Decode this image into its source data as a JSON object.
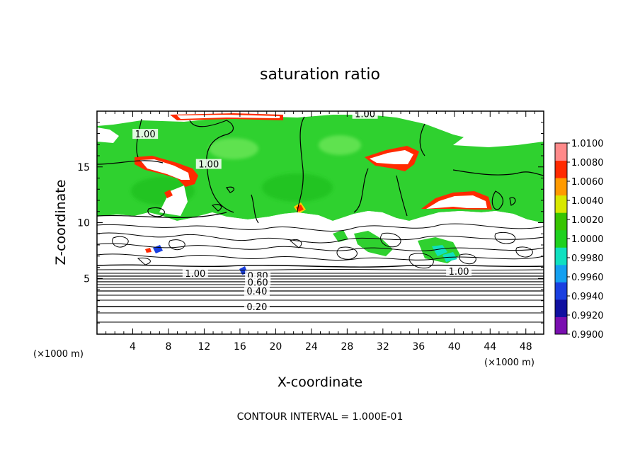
{
  "chart_data": {
    "type": "heatmap",
    "title": "saturation ratio",
    "xlabel": "X-coordinate",
    "ylabel": "Z-coordinate",
    "x_unit": "(×1000 m)",
    "z_unit": "(×1000 m)",
    "xlim": [
      0,
      50
    ],
    "ylim": [
      0,
      20
    ],
    "x_ticks": [
      4,
      8,
      12,
      16,
      20,
      24,
      28,
      32,
      36,
      40,
      44,
      48
    ],
    "y_ticks": [
      5,
      10,
      15
    ],
    "colorbar": {
      "min": 0.99,
      "max": 1.01,
      "labels": [
        "1.0100",
        "1.0080",
        "1.0060",
        "1.0040",
        "1.0020",
        "1.0000",
        "0.9980",
        "0.9960",
        "0.9940",
        "0.9920",
        "0.9900"
      ],
      "colors": [
        "#7a0fb0",
        "#1010a0",
        "#1a3fe0",
        "#14a0f0",
        "#10e0c0",
        "#1fd11f",
        "#38c400",
        "#d8e800",
        "#ff9a00",
        "#ff2a00",
        "#ff8a8a"
      ]
    },
    "contour_interval": "CONTOUR INTERVAL = 1.000E-01",
    "contour_labels": [
      {
        "text": "1.00",
        "x": 30,
        "z": 19.7
      },
      {
        "text": "1.00",
        "x": 5.4,
        "z": 17.9
      },
      {
        "text": "1.00",
        "x": 12.5,
        "z": 15.2
      },
      {
        "text": "1.00",
        "x": 11,
        "z": 5.4
      },
      {
        "text": "1.00",
        "x": 40.5,
        "z": 5.6
      },
      {
        "text": "0.80",
        "x": 18,
        "z": 5.2
      },
      {
        "text": "0.60",
        "x": 18,
        "z": 4.6
      },
      {
        "text": "0.40",
        "x": 17.9,
        "z": 3.8
      },
      {
        "text": "0.20",
        "x": 17.9,
        "z": 2.4
      }
    ]
  }
}
